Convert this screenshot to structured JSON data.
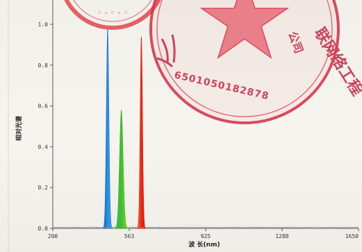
{
  "chart_data": {
    "type": "area",
    "xlabel": "波 长(nm)",
    "ylabel": "相对光谱",
    "xlim": [
      200,
      1650
    ],
    "ylim": [
      0,
      1.0
    ],
    "x_ticks": [
      "200",
      "563",
      "925",
      "1288",
      "1650"
    ],
    "y_ticks": [
      "0.0",
      "0.2",
      "0.4",
      "0.6",
      "0.8",
      "1.0"
    ],
    "series": [
      {
        "peak_nm": 460,
        "value": 0.98,
        "width_nm": 10,
        "color": "#2a6fd0"
      },
      {
        "peak_nm": 525,
        "value": 0.58,
        "width_nm": 14,
        "color": "#42b02e"
      },
      {
        "peak_nm": 620,
        "value": 0.94,
        "width_nm": 9,
        "color": "#e51d1d"
      }
    ],
    "grid": false
  },
  "stamps": {
    "seal_code": "6501050182878",
    "seal_partial_text": "联网络工程",
    "seal_partial_text_2": "公司"
  }
}
